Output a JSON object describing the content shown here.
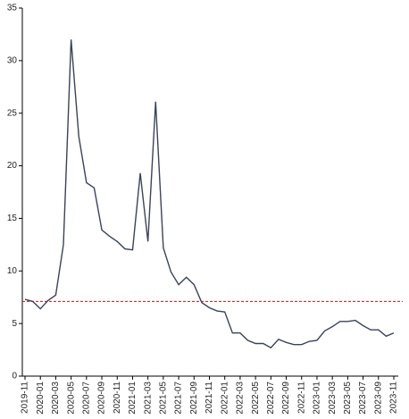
{
  "chart_data": {
    "type": "line",
    "categories": [
      "2019-11",
      null,
      "2020-01",
      null,
      "2020-03",
      null,
      "2020-05",
      null,
      "2020-07",
      null,
      "2020-09",
      null,
      "2020-11",
      null,
      "2021-01",
      null,
      "2021-03",
      null,
      "2021-05",
      null,
      "2021-07",
      null,
      "2021-09",
      null,
      "2021-11",
      null,
      "2022-01",
      null,
      "2022-03",
      null,
      "2022-05",
      null,
      "2022-07",
      null,
      "2022-09",
      null,
      "2022-11",
      null,
      "2023-01",
      null,
      "2023-03",
      null,
      "2023-05",
      null,
      "2023-07",
      null,
      "2023-09",
      null,
      "2023-11"
    ],
    "series": [
      {
        "color": "#3a4356",
        "values": [
          7.3,
          7.1,
          6.4,
          7.2,
          7.7,
          12.5,
          32.0,
          22.8,
          18.4,
          17.9,
          13.9,
          13.3,
          12.8,
          12.1,
          12.0,
          19.3,
          12.8,
          26.1,
          12.2,
          9.9,
          8.7,
          9.4,
          8.7,
          7.0,
          6.5,
          6.2,
          6.1,
          4.1,
          4.1,
          3.4,
          3.1,
          3.1,
          2.7,
          3.5,
          3.2,
          3.0,
          3.0,
          3.3,
          3.4,
          4.3,
          4.7,
          5.2,
          5.2,
          5.3,
          4.8,
          4.4,
          4.4,
          3.8,
          4.1
        ]
      }
    ],
    "reference_line": {
      "value": 7.1,
      "color": "#c0141c"
    },
    "ylim": [
      0,
      35
    ],
    "yticks": [
      0,
      5,
      10,
      15,
      20,
      25,
      30,
      35
    ],
    "grid": false
  }
}
